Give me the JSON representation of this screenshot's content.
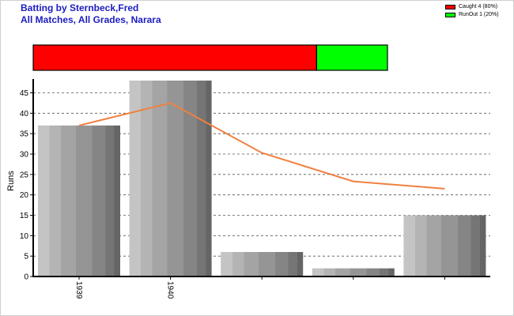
{
  "title_line1": "Batting by Sternbeck,Fred",
  "title_line2": "All Matches, All Grades, Narara",
  "chart_data": [
    {
      "type": "bar",
      "title": "Batting by Sternbeck,Fred",
      "subtitle": "All Matches, All Grades, Narara",
      "ylabel": "Runs",
      "xlabel": "",
      "categories": [
        "1939",
        "1940",
        "",
        "",
        ""
      ],
      "values": [
        37,
        48,
        6,
        2,
        15
      ],
      "ylim": [
        0,
        48
      ],
      "yticks": [
        0,
        5,
        10,
        15,
        20,
        25,
        30,
        35,
        40,
        45
      ],
      "grid": "horizontal-dashed",
      "bar_color": "#9a9a9a",
      "trend_line": {
        "type": "line",
        "values": [
          37,
          42.5,
          30.3,
          23.3,
          21.5
        ],
        "color": "#f08040"
      }
    },
    {
      "type": "bar",
      "orientation": "horizontal-stacked",
      "legend_position": "top-right",
      "series": [
        {
          "name": "Caught 4 (80%)",
          "value": 80,
          "color": "#ff0000"
        },
        {
          "name": "RunOut 1 (20%)",
          "value": 20,
          "color": "#00ff00"
        }
      ]
    }
  ]
}
